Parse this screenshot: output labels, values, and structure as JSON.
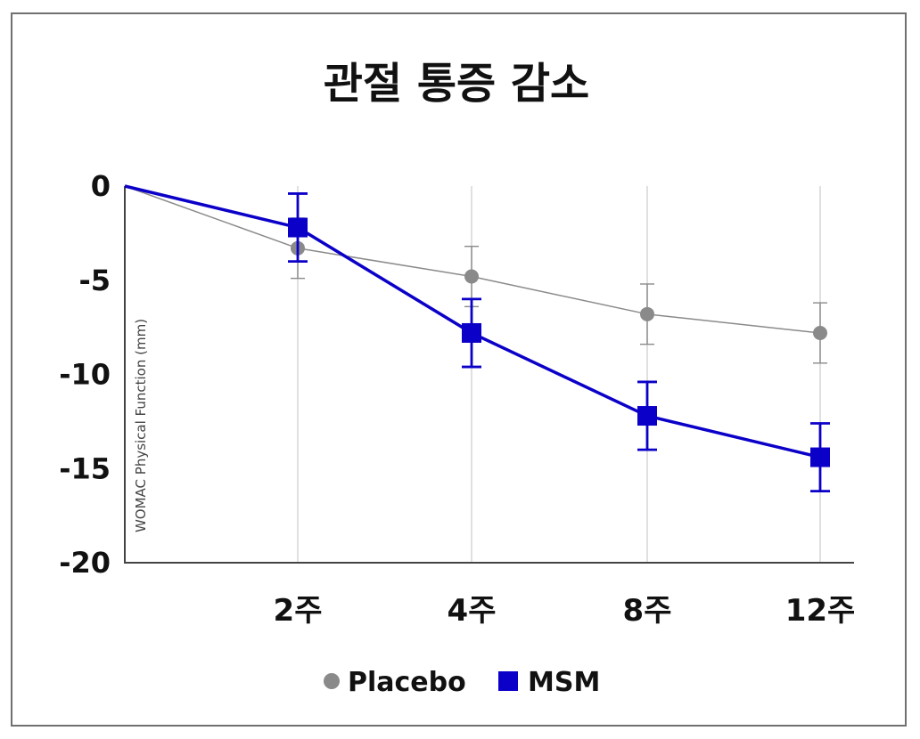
{
  "chart_data": {
    "type": "line",
    "title": "관절 통증 감소",
    "ylabel": "WOMAC Physical Function (mm)",
    "xlabel": "",
    "x": [
      0,
      2,
      4,
      8,
      12
    ],
    "categories": [
      "",
      "2주",
      "4주",
      "8주",
      "12주"
    ],
    "ylim": [
      -20,
      0
    ],
    "yticks": [
      0,
      -5,
      -10,
      -15,
      -20
    ],
    "ytick_labels": [
      "0",
      "-5",
      "-10",
      "-15",
      "-20"
    ],
    "grid": "vertical",
    "legend_position": "bottom-center",
    "series": [
      {
        "name": "Placebo",
        "marker": "circle",
        "color": "#8a8a8a",
        "values": [
          0,
          -3.3,
          -4.8,
          -6.8,
          -7.8
        ],
        "errors": [
          0,
          1.6,
          1.6,
          1.6,
          1.6
        ]
      },
      {
        "name": "MSM",
        "marker": "square",
        "color": "#0b00c8",
        "values": [
          0,
          -2.2,
          -7.8,
          -12.2,
          -14.4
        ],
        "errors": [
          0,
          1.8,
          1.8,
          1.8,
          1.8
        ]
      }
    ]
  }
}
